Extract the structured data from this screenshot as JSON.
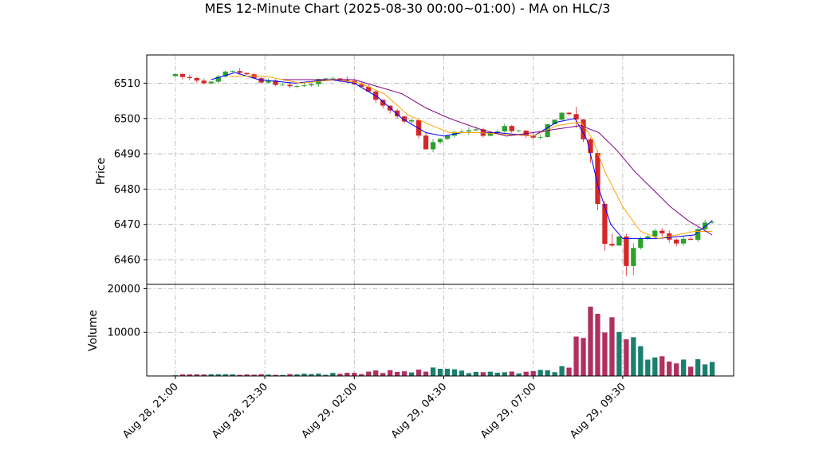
{
  "chart_data": {
    "type": "candlestick",
    "title": "MES 12-Minute Chart (2025-08-30 00:00~01:00) - MA on HLC/3",
    "price_panel": {
      "ylabel": "Price",
      "yticks": [
        6460,
        6470,
        6480,
        6490,
        6500,
        6510
      ],
      "ylim": [
        6453,
        6518
      ]
    },
    "volume_panel": {
      "ylabel": "Volume",
      "yticks": [
        10000,
        20000
      ],
      "ylim": [
        0,
        21000
      ]
    },
    "x_axis": {
      "type": "datetime",
      "start": "2025-08-28T21:00",
      "end": "2025-08-29T12:00",
      "xlim": [
        "2025-08-28T20:12",
        "2025-08-29T12:36"
      ],
      "ticks": [
        {
          "at": "2025-08-28T21:00",
          "label": "Aug 28, 21:00"
        },
        {
          "at": "2025-08-28T23:30",
          "label": "Aug 28, 23:30"
        },
        {
          "at": "2025-08-29T02:00",
          "label": "Aug 29, 02:00"
        },
        {
          "at": "2025-08-29T04:30",
          "label": "Aug 29, 04:30"
        },
        {
          "at": "2025-08-29T07:00",
          "label": "Aug 29, 07:00"
        },
        {
          "at": "2025-08-29T09:30",
          "label": "Aug 29, 09:30"
        }
      ]
    },
    "grid": true,
    "colors": {
      "up": "#2ca02c",
      "down": "#d62728",
      "volume_up": "#1a7f6e",
      "volume_down": "#b03060",
      "ma_fast": "#0000ff",
      "ma_mid": "#ffa500",
      "ma_slow": "#800080"
    },
    "price_close_path": [
      [
        "2025-08-28T21:00",
        6512
      ],
      [
        "2025-08-28T21:40",
        6511
      ],
      [
        "2025-08-28T22:00",
        6510
      ],
      [
        "2025-08-28T22:15",
        6512
      ],
      [
        "2025-08-28T22:40",
        6514
      ],
      [
        "2025-08-28T23:00",
        6512
      ],
      [
        "2025-08-28T23:40",
        6510
      ],
      [
        "2025-08-29T00:20",
        6509
      ],
      [
        "2025-08-29T00:50",
        6510
      ],
      [
        "2025-08-29T01:20",
        6512
      ],
      [
        "2025-08-29T01:50",
        6510
      ],
      [
        "2025-08-29T02:10",
        6510
      ],
      [
        "2025-08-29T02:40",
        6505
      ],
      [
        "2025-08-29T03:10",
        6500
      ],
      [
        "2025-08-29T03:40",
        6499
      ],
      [
        "2025-08-29T04:00",
        6491
      ],
      [
        "2025-08-29T04:20",
        6494
      ],
      [
        "2025-08-29T04:45",
        6496
      ],
      [
        "2025-08-29T05:15",
        6497
      ],
      [
        "2025-08-29T05:45",
        6495
      ],
      [
        "2025-08-29T06:10",
        6498
      ],
      [
        "2025-08-29T06:40",
        6496
      ],
      [
        "2025-08-29T07:00",
        6494
      ],
      [
        "2025-08-29T07:10",
        6495
      ],
      [
        "2025-08-29T07:40",
        6501
      ],
      [
        "2025-08-29T08:10",
        6501
      ],
      [
        "2025-08-29T08:20",
        6497
      ],
      [
        "2025-08-29T08:40",
        6485
      ],
      [
        "2025-08-29T08:55",
        6472
      ],
      [
        "2025-08-29T09:05",
        6462
      ],
      [
        "2025-08-29T09:25",
        6468
      ],
      [
        "2025-08-29T09:40",
        6458
      ],
      [
        "2025-08-29T09:55",
        6465
      ],
      [
        "2025-08-29T10:25",
        6468
      ],
      [
        "2025-08-29T10:55",
        6465
      ],
      [
        "2025-08-29T11:25",
        6466
      ],
      [
        "2025-08-29T11:55",
        6472
      ],
      [
        "2025-08-29T12:00",
        6471
      ]
    ],
    "volume_profile": [
      [
        "2025-08-28T21:00",
        300
      ],
      [
        "2025-08-29T00:00",
        300
      ],
      [
        "2025-08-29T02:00",
        600
      ],
      [
        "2025-08-29T03:15",
        1400
      ],
      [
        "2025-08-29T04:00",
        1600
      ],
      [
        "2025-08-29T05:30",
        800
      ],
      [
        "2025-08-29T07:00",
        900
      ],
      [
        "2025-08-29T07:30",
        1200
      ],
      [
        "2025-08-29T08:00",
        2800
      ],
      [
        "2025-08-29T08:30",
        12000
      ],
      [
        "2025-08-29T08:55",
        16000
      ],
      [
        "2025-08-29T09:15",
        13000
      ],
      [
        "2025-08-29T09:40",
        9000
      ],
      [
        "2025-08-29T10:00",
        5000
      ],
      [
        "2025-08-29T10:30",
        4000
      ],
      [
        "2025-08-29T11:00",
        3500
      ],
      [
        "2025-08-29T11:30",
        3000
      ],
      [
        "2025-08-29T12:00",
        2500
      ]
    ],
    "ma_fast_path": [
      [
        "2025-08-28T22:00",
        6511
      ],
      [
        "2025-08-28T22:40",
        6513
      ],
      [
        "2025-08-28T23:20",
        6511
      ],
      [
        "2025-08-29T00:20",
        6510
      ],
      [
        "2025-08-29T01:20",
        6511
      ],
      [
        "2025-08-29T02:00",
        6510
      ],
      [
        "2025-08-29T02:40",
        6506
      ],
      [
        "2025-08-29T03:20",
        6500
      ],
      [
        "2025-08-29T04:00",
        6496
      ],
      [
        "2025-08-29T04:30",
        6495
      ],
      [
        "2025-08-29T05:00",
        6496
      ],
      [
        "2025-08-29T06:00",
        6496
      ],
      [
        "2025-08-29T07:00",
        6495
      ],
      [
        "2025-08-29T07:40",
        6499
      ],
      [
        "2025-08-29T08:10",
        6500
      ],
      [
        "2025-08-29T08:30",
        6494
      ],
      [
        "2025-08-29T08:50",
        6480
      ],
      [
        "2025-08-29T09:10",
        6470
      ],
      [
        "2025-08-29T09:30",
        6466
      ],
      [
        "2025-08-29T10:00",
        6466
      ],
      [
        "2025-08-29T10:30",
        6466
      ],
      [
        "2025-08-29T11:30",
        6467
      ],
      [
        "2025-08-29T12:00",
        6471
      ]
    ],
    "ma_mid_path": [
      [
        "2025-08-28T22:30",
        6512
      ],
      [
        "2025-08-28T23:30",
        6512
      ],
      [
        "2025-08-29T00:30",
        6510
      ],
      [
        "2025-08-29T01:30",
        6511
      ],
      [
        "2025-08-29T02:10",
        6510
      ],
      [
        "2025-08-29T02:50",
        6507
      ],
      [
        "2025-08-29T03:30",
        6501
      ],
      [
        "2025-08-29T04:10",
        6498
      ],
      [
        "2025-08-29T04:40",
        6496
      ],
      [
        "2025-08-29T05:30",
        6496
      ],
      [
        "2025-08-29T07:00",
        6495
      ],
      [
        "2025-08-29T07:40",
        6498
      ],
      [
        "2025-08-29T08:20",
        6499
      ],
      [
        "2025-08-29T08:40",
        6494
      ],
      [
        "2025-08-29T09:00",
        6485
      ],
      [
        "2025-08-29T09:30",
        6475
      ],
      [
        "2025-08-29T10:00",
        6468
      ],
      [
        "2025-08-29T10:30",
        6466
      ],
      [
        "2025-08-29T11:30",
        6468
      ],
      [
        "2025-08-29T12:00",
        6468
      ]
    ],
    "ma_slow_path": [
      [
        "2025-08-29T00:00",
        6511
      ],
      [
        "2025-08-29T01:30",
        6511
      ],
      [
        "2025-08-29T02:00",
        6511
      ],
      [
        "2025-08-29T02:40",
        6509
      ],
      [
        "2025-08-29T03:20",
        6507
      ],
      [
        "2025-08-29T04:00",
        6503
      ],
      [
        "2025-08-29T04:40",
        6500
      ],
      [
        "2025-08-29T05:30",
        6497
      ],
      [
        "2025-08-29T06:15",
        6495
      ],
      [
        "2025-08-29T07:00",
        6496
      ],
      [
        "2025-08-29T07:40",
        6497
      ],
      [
        "2025-08-29T08:20",
        6498
      ],
      [
        "2025-08-29T08:50",
        6496
      ],
      [
        "2025-08-29T09:20",
        6491
      ],
      [
        "2025-08-29T09:50",
        6485
      ],
      [
        "2025-08-29T10:20",
        6480
      ],
      [
        "2025-08-29T10:50",
        6475
      ],
      [
        "2025-08-29T11:20",
        6471
      ],
      [
        "2025-08-29T11:50",
        6468
      ],
      [
        "2025-08-29T12:00",
        6467
      ]
    ]
  }
}
